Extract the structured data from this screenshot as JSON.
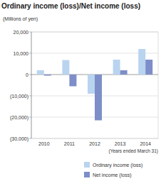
{
  "chart_data": {
    "type": "bar",
    "title": "Ordinary income (loss)/Net income (loss)",
    "y_label": "(Millions of yen)",
    "note": "(Years ended March 31)",
    "categories": [
      "2010",
      "2011",
      "2012",
      "2013",
      "2014"
    ],
    "series": [
      {
        "name": "Ordinary income (loss)",
        "color": "#b9d4ef",
        "values": [
          2000,
          6800,
          -9000,
          7000,
          12000
        ]
      },
      {
        "name": "Net income (loss)",
        "color": "#7d8ec8",
        "values": [
          -500,
          -5500,
          -21500,
          2000,
          7000
        ]
      }
    ],
    "ylim": [
      -30000,
      20000
    ],
    "yticks": [
      {
        "value": 20000,
        "label": "20,000"
      },
      {
        "value": 10000,
        "label": "10,000"
      },
      0,
      {
        "value": -10000,
        "label": "(10,000)"
      },
      {
        "value": -20000,
        "label": "(20,000)"
      },
      {
        "value": -30000,
        "label": "(30,000)"
      }
    ],
    "grid": true,
    "legend": "bottom"
  }
}
